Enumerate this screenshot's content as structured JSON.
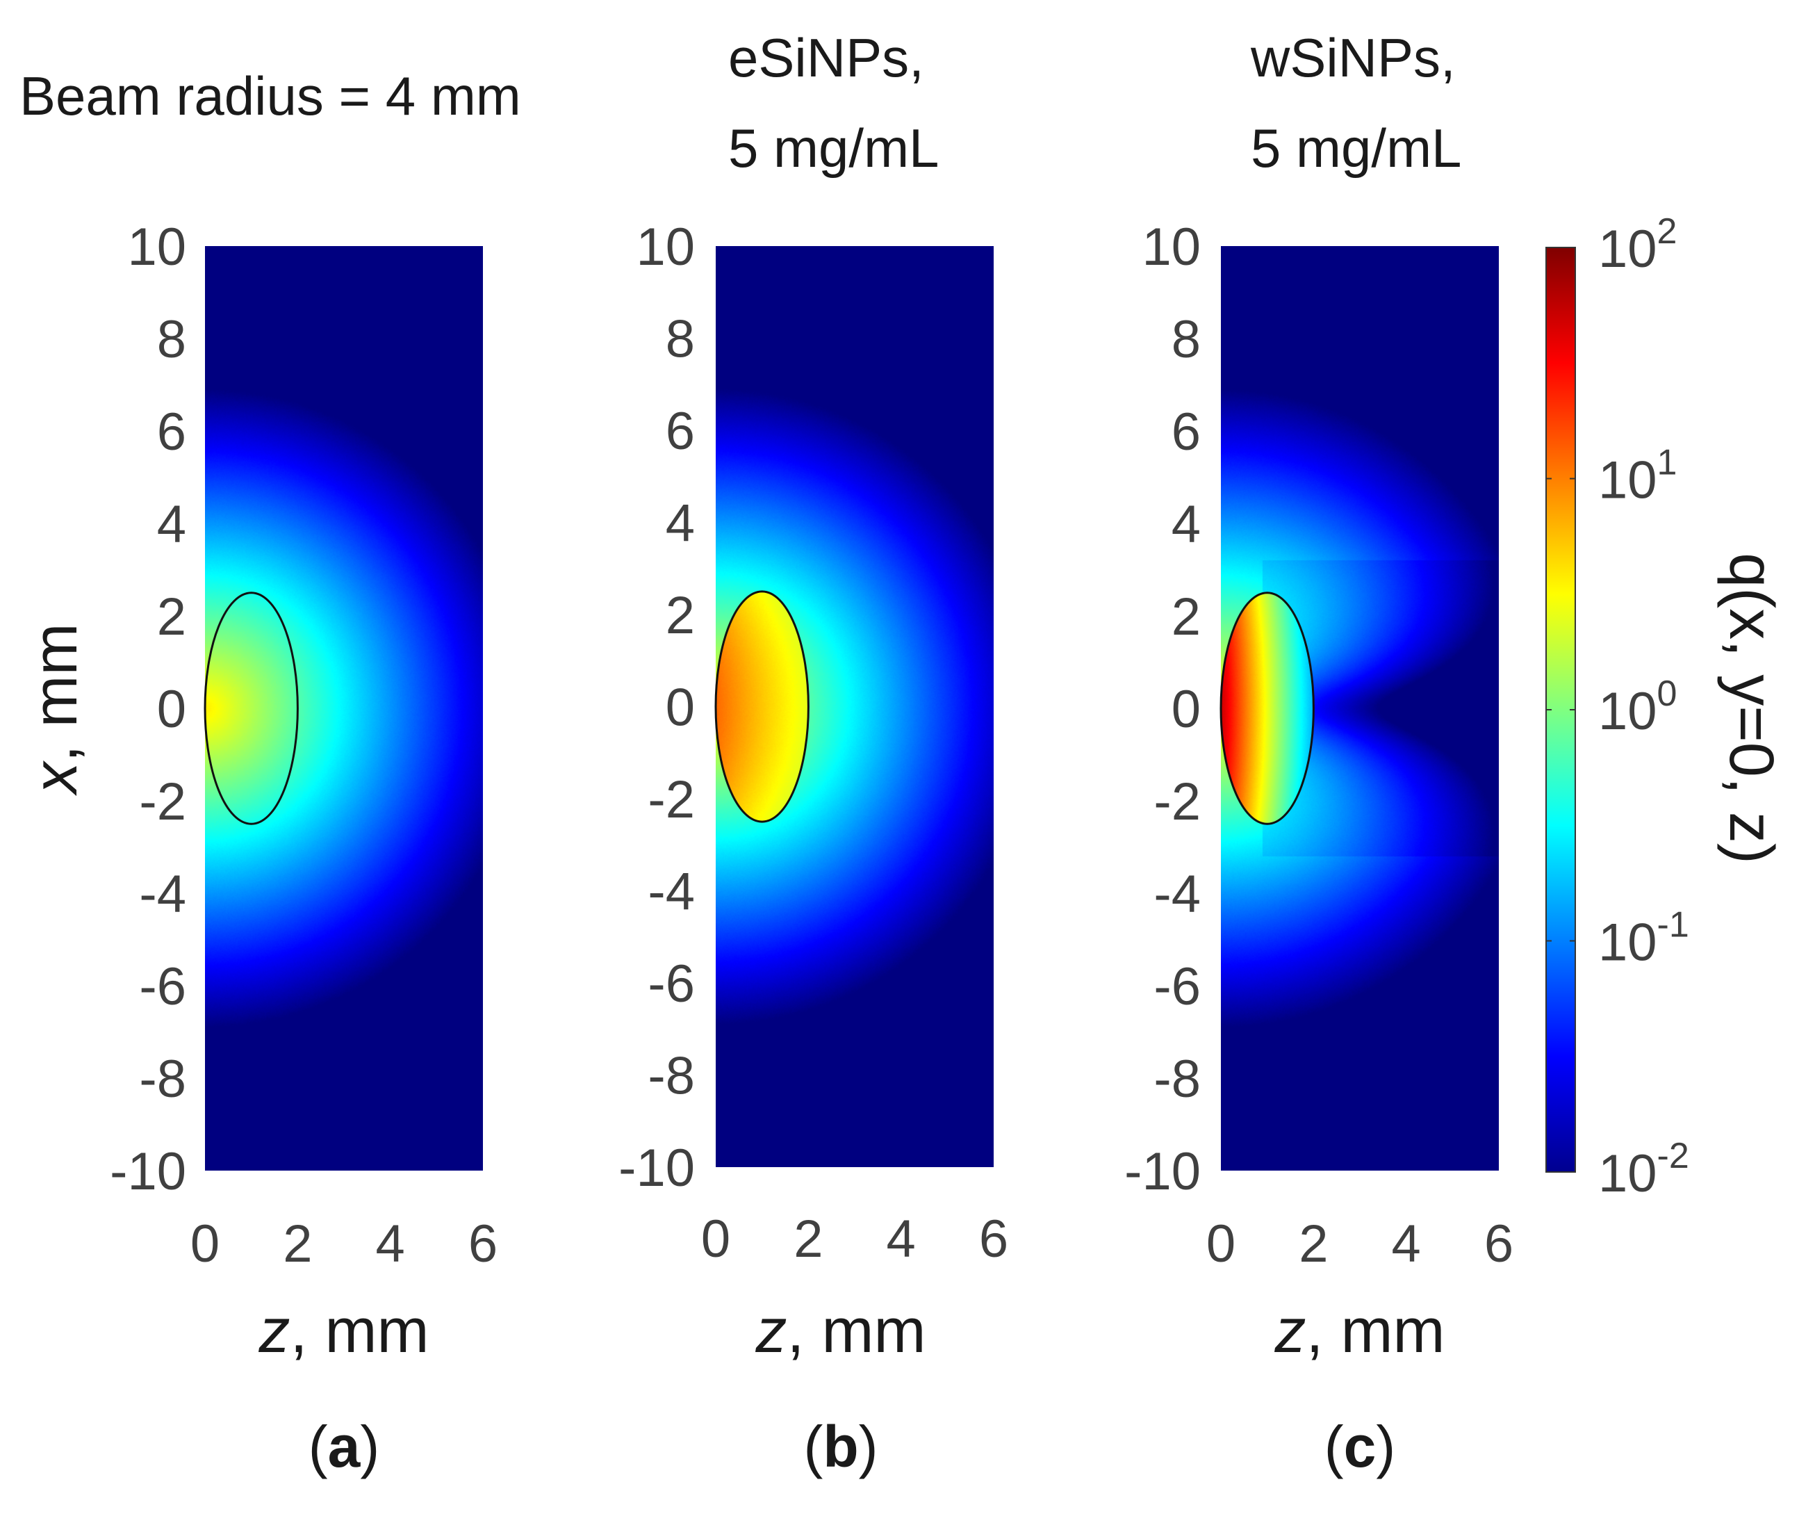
{
  "header": {
    "beam": "Beam radius = 4 mm",
    "titleB": [
      "eSiNPs,",
      "5 mg/mL"
    ],
    "titleC": [
      "wSiNPs,",
      "5 mg/mL"
    ]
  },
  "colors": {
    "background": "#00008f",
    "outline": "#111111"
  },
  "chart_data": [
    {
      "type": "heatmap",
      "panel": "(a)",
      "title": "",
      "xlabel": "z, mm",
      "ylabel": "x, mm",
      "xlim": [
        0,
        6
      ],
      "ylim": [
        -10,
        10
      ],
      "xticks": [
        "0",
        "2",
        "4",
        "6"
      ],
      "yticks": [
        "10",
        "8",
        "6",
        "4",
        "2",
        "0",
        "-2",
        "-4",
        "-6",
        "-8",
        "-10"
      ],
      "inclusion": {
        "center_z": 1.0,
        "center_x": 0,
        "semi_z": 1.0,
        "semi_x": 2.5
      },
      "profile": "diffuse fluence decaying with distance from z=0, x=0; ~3 at surface center",
      "peak_value": 3
    },
    {
      "type": "heatmap",
      "panel": "(b)",
      "title": "eSiNPs, 5 mg/mL",
      "xlabel": "z, mm",
      "xlim": [
        0,
        6
      ],
      "ylim": [
        -10,
        10
      ],
      "xticks": [
        "0",
        "2",
        "4",
        "6"
      ],
      "yticks": [
        "10",
        "8",
        "6",
        "4",
        "2",
        "0",
        "-2",
        "-4",
        "-6",
        "-8",
        "-10"
      ],
      "inclusion": {
        "center_z": 1.0,
        "center_x": 0,
        "semi_z": 1.0,
        "semi_x": 2.5
      },
      "profile": "enhanced absorption inside inclusion near z=0 (~10)",
      "peak_value": 10
    },
    {
      "type": "heatmap",
      "panel": "(c)",
      "title": "wSiNPs, 5 mg/mL",
      "xlabel": "z, mm",
      "xlim": [
        0,
        6
      ],
      "ylim": [
        -10,
        10
      ],
      "xticks": [
        "0",
        "2",
        "4",
        "6"
      ],
      "yticks": [
        "10",
        "8",
        "6",
        "4",
        "2",
        "0",
        "-2",
        "-4",
        "-6",
        "-8",
        "-10"
      ],
      "inclusion": {
        "center_z": 1.0,
        "center_x": 0,
        "semi_z": 1.0,
        "semi_x": 2.5
      },
      "profile": "strong absorption at inclusion front edge (~50), shadow behind inclusion (~0.02)",
      "peak_value": 50
    }
  ],
  "colorbar": {
    "label": "q(x, y=0, z)",
    "scale": "log",
    "range": [
      0.01,
      100
    ],
    "ticks": [
      {
        "base": "10",
        "exp": "2"
      },
      {
        "base": "10",
        "exp": "1"
      },
      {
        "base": "10",
        "exp": "0"
      },
      {
        "base": "10",
        "exp": "-1"
      },
      {
        "base": "10",
        "exp": "-2"
      }
    ]
  }
}
